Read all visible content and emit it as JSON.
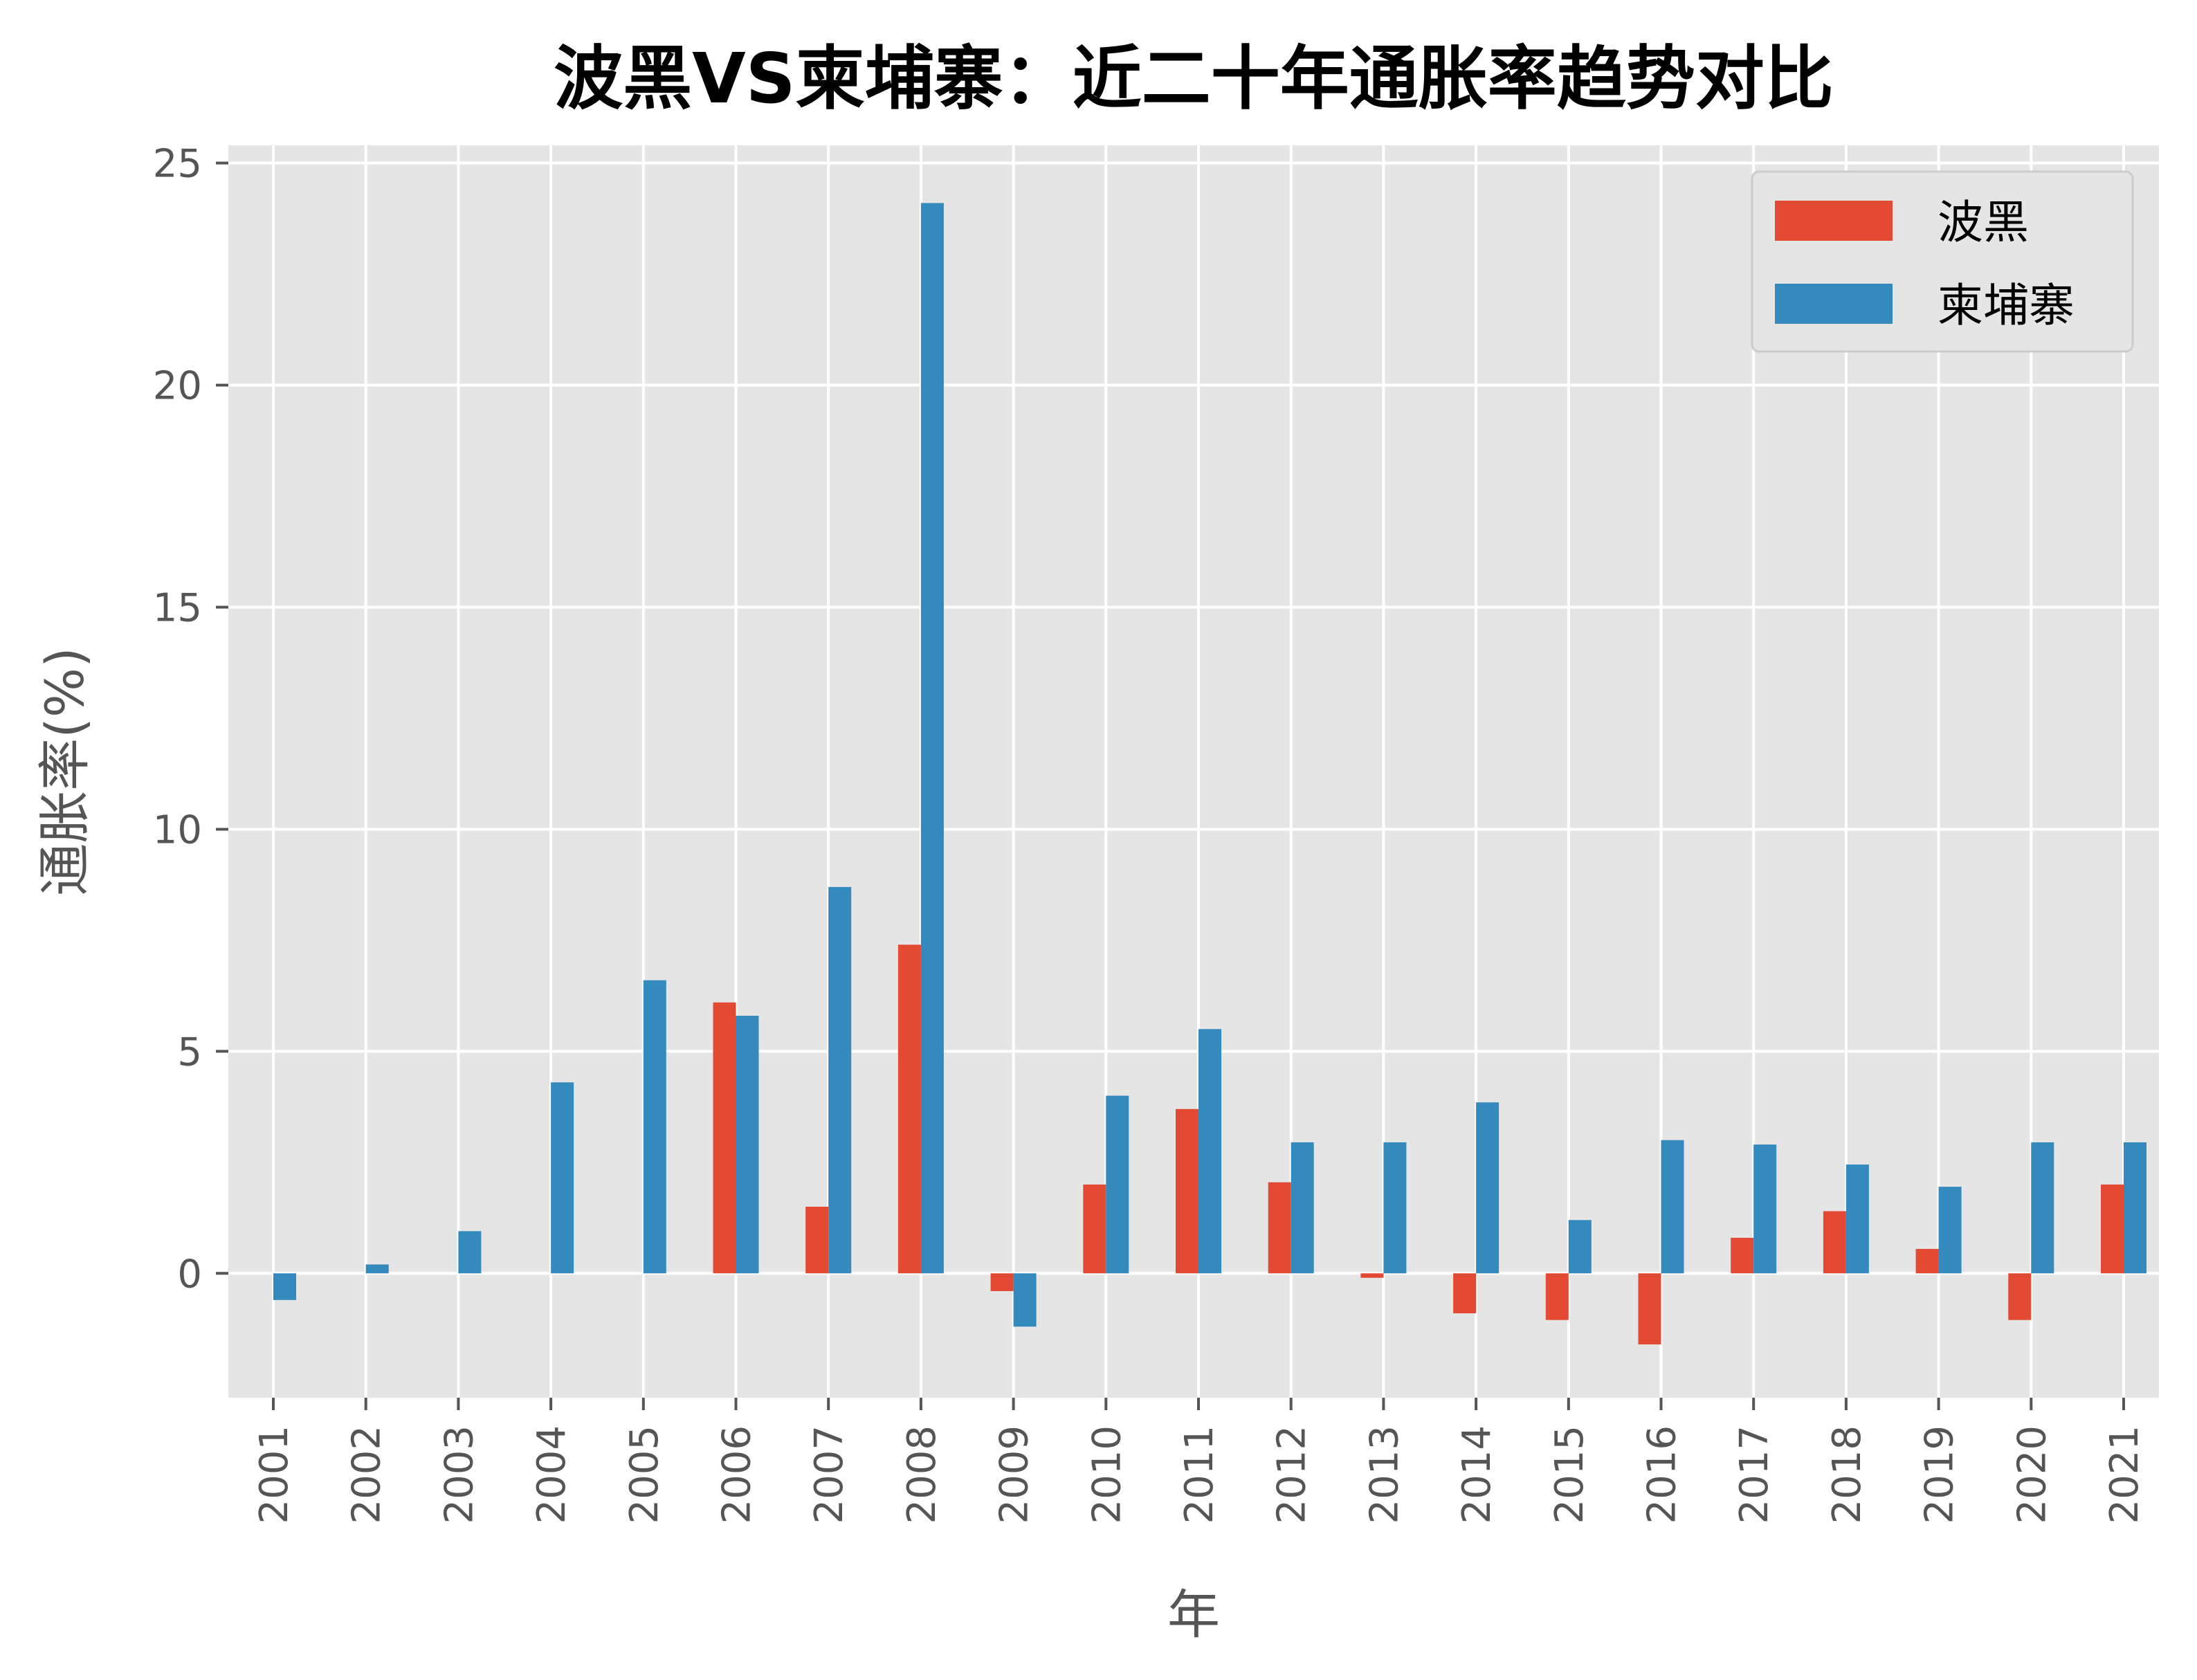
{
  "chart_data": {
    "type": "bar",
    "title": "波黑VS柬埔寨：近二十年通胀率趋势对比",
    "xlabel": "年",
    "ylabel": "通胀率(%)",
    "categories": [
      "2001",
      "2002",
      "2003",
      "2004",
      "2005",
      "2006",
      "2007",
      "2008",
      "2009",
      "2010",
      "2011",
      "2012",
      "2013",
      "2014",
      "2015",
      "2016",
      "2017",
      "2018",
      "2019",
      "2020",
      "2021"
    ],
    "series": [
      {
        "name": "波黑",
        "color": "#E24A33",
        "values": [
          null,
          null,
          null,
          null,
          null,
          6.1,
          1.5,
          7.4,
          -0.4,
          2.0,
          3.7,
          2.05,
          -0.1,
          -0.9,
          -1.05,
          -1.6,
          0.8,
          1.4,
          0.55,
          -1.05,
          2.0
        ]
      },
      {
        "name": "柬埔寨",
        "color": "#348ABD",
        "values": [
          -0.6,
          0.2,
          0.95,
          4.3,
          6.6,
          5.8,
          8.7,
          24.1,
          -1.2,
          4.0,
          5.5,
          2.95,
          2.95,
          3.85,
          1.2,
          3.0,
          2.9,
          2.45,
          1.95,
          2.95,
          2.95
        ]
      }
    ],
    "yticks": [
      0,
      5,
      10,
      15,
      20,
      25
    ],
    "ylim": [
      -2.8,
      25.4
    ],
    "grid": true,
    "legend_position": "top-right",
    "plot_background": "#E5E5E5",
    "grid_color": "#FFFFFF"
  }
}
